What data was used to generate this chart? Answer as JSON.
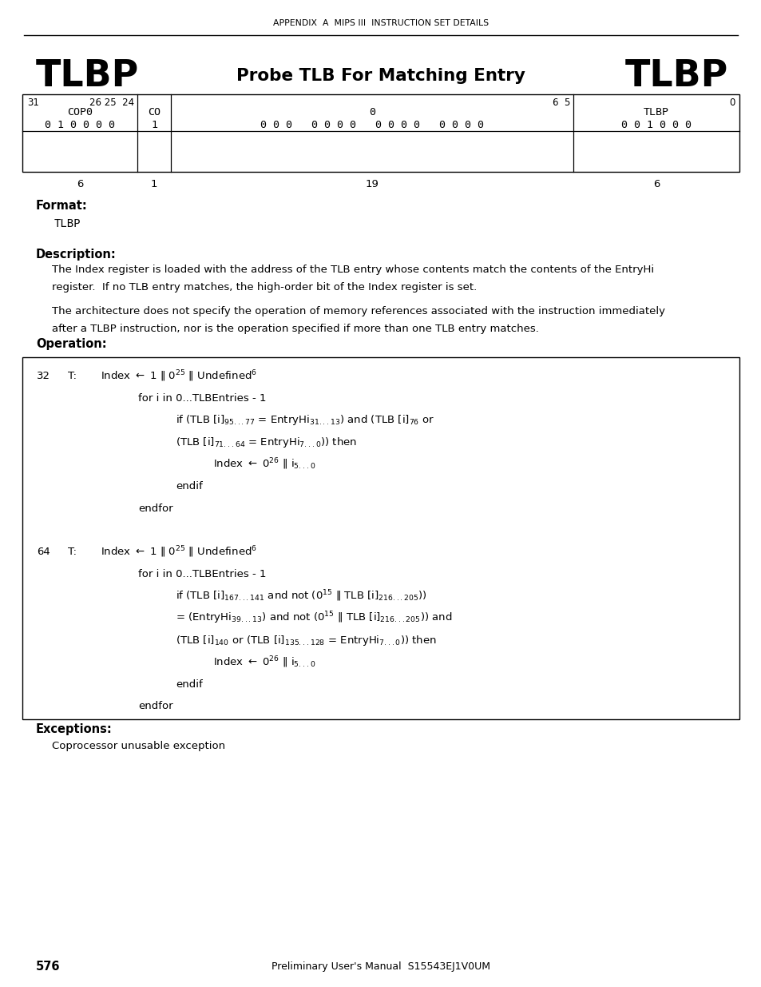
{
  "page_header": "APPENDIX  A  MIPS III  INSTRUCTION SET DETAILS",
  "tlbp_left": "TLBP",
  "subtitle": "Probe TLB For Matching Entry",
  "tlbp_right": "TLBP",
  "format_label": "Format:",
  "format_value": "TLBP",
  "description_label": "Description:",
  "desc1": "The Index register is loaded with the address of the TLB entry whose contents match the contents of the EntryHi",
  "desc2": "register.  If no TLB entry matches, the high-order bit of the Index register is set.",
  "desc3": "The architecture does not specify the operation of memory references associated with the instruction immediately",
  "desc4": "after a TLBP instruction, nor is the operation specified if more than one TLB entry matches.",
  "operation_label": "Operation:",
  "exceptions_label": "Exceptions:",
  "exceptions_value": "Coprocessor unusable exception",
  "footer_page": "576",
  "footer_center": "Preliminary User's Manual  S15543EJ1V0UM",
  "table_row1": [
    "COP0",
    "CO",
    "0",
    "TLBP"
  ],
  "table_row2": [
    "0 1 0 0 0 0",
    "1",
    "0 0 0   0 0 0 0   0 0 0 0   0 0 0 0",
    "0 0 1 0 0 0"
  ],
  "table_widths": [
    "6",
    "1",
    "19",
    "6"
  ],
  "bit_labels": [
    "31",
    "26 25  24",
    "6  5",
    "0"
  ]
}
